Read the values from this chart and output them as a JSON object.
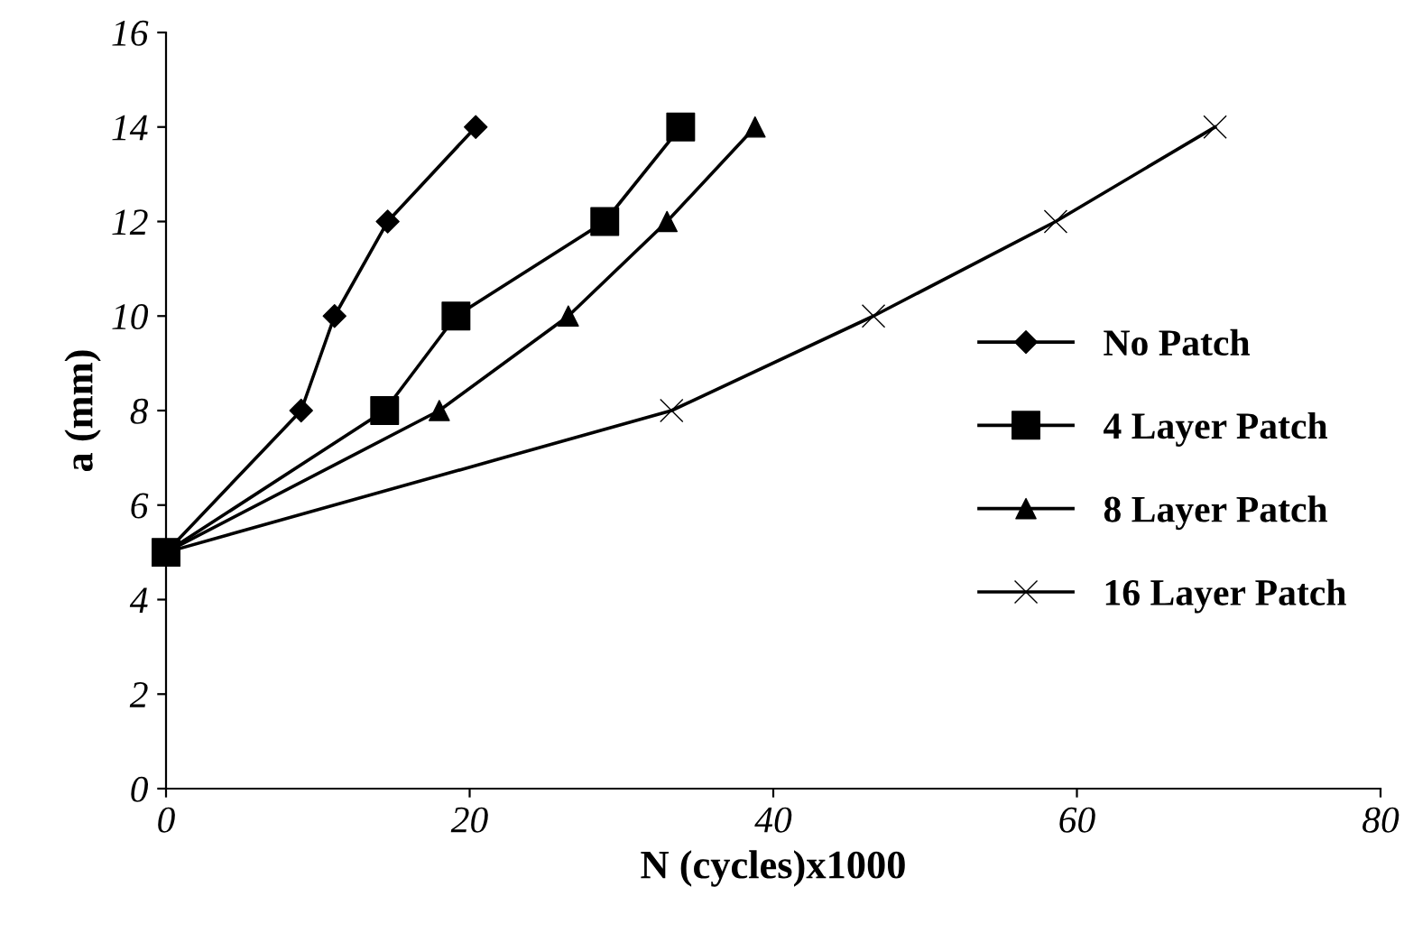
{
  "chart_data": {
    "type": "line",
    "xlabel": "N (cycles)x1000",
    "ylabel": "a (mm)",
    "xlim": [
      0,
      80
    ],
    "xticks": [
      0,
      20,
      40,
      60,
      80
    ],
    "ylim": [
      0,
      16
    ],
    "yticks": [
      0,
      2,
      4,
      6,
      8,
      10,
      12,
      14,
      16
    ],
    "grid": false,
    "legend": "right",
    "line_style": "solid",
    "series": [
      {
        "name": "No Patch",
        "color": "#000000",
        "marker": "diamond",
        "x": [
          0,
          8.9,
          11.1,
          14.6,
          20.4
        ],
        "values": [
          5,
          8,
          10,
          12,
          14
        ]
      },
      {
        "name": "4 Layer Patch",
        "color": "#000000",
        "marker": "square",
        "x": [
          0,
          14.4,
          19.1,
          28.9,
          33.9
        ],
        "values": [
          5,
          8,
          10,
          12,
          14
        ]
      },
      {
        "name": "8 Layer Patch",
        "color": "#000000",
        "marker": "triangle",
        "x": [
          0,
          18,
          26.5,
          33,
          38.8
        ],
        "values": [
          5,
          8,
          10,
          12,
          14
        ]
      },
      {
        "name": "16 Layer Patch",
        "color": "#000000",
        "marker": "cross",
        "x": [
          0,
          33.3,
          46.6,
          58.6,
          69.1
        ],
        "values": [
          5,
          8,
          10,
          12,
          14
        ]
      }
    ]
  }
}
